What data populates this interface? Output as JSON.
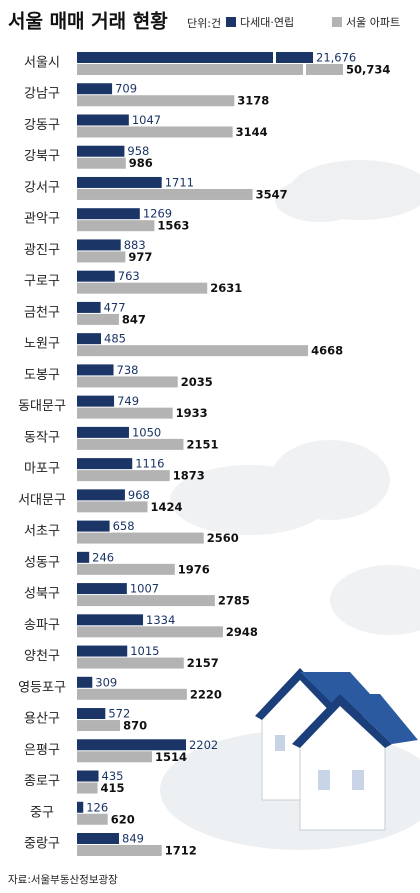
{
  "chart_data": {
    "type": "bar",
    "orientation": "horizontal",
    "title": "서울 매매 거래 현황",
    "unit": "단위:건",
    "source": "자료:서울부동산정보광장",
    "categories": [
      "서울시",
      "강남구",
      "강동구",
      "강북구",
      "강서구",
      "관악구",
      "광진구",
      "구로구",
      "금천구",
      "노원구",
      "도봉구",
      "동대문구",
      "동작구",
      "마포구",
      "서대문구",
      "서초구",
      "성동구",
      "성북구",
      "송파구",
      "양천구",
      "영등포구",
      "용산구",
      "은평구",
      "종로구",
      "중구",
      "중랑구"
    ],
    "series": [
      {
        "name": "다세대·연립",
        "color": "#1b3567",
        "values": [
          21676,
          709,
          1047,
          958,
          1711,
          1269,
          883,
          763,
          477,
          485,
          738,
          749,
          1050,
          1116,
          968,
          658,
          246,
          1007,
          1334,
          1015,
          309,
          572,
          2202,
          435,
          126,
          849
        ],
        "value_labels": [
          "21,676",
          "709",
          "1047",
          "958",
          "1711",
          "1269",
          "883",
          "763",
          "477",
          "485",
          "738",
          "749",
          "1050",
          "1116",
          "968",
          "658",
          "246",
          "1007",
          "1334",
          "1015",
          "309",
          "572",
          "2202",
          "435",
          "126",
          "849"
        ]
      },
      {
        "name": "서울 아파트",
        "color": "#b3b3b3",
        "values": [
          50734,
          3178,
          3144,
          986,
          3547,
          1563,
          977,
          2631,
          847,
          4668,
          2035,
          1933,
          2151,
          1873,
          1424,
          2560,
          1976,
          2785,
          2948,
          2157,
          2220,
          870,
          1514,
          415,
          620,
          1712
        ],
        "value_labels": [
          "50,734",
          "3178",
          "3144",
          "986",
          "3547",
          "1563",
          "977",
          "2631",
          "847",
          "4668",
          "2035",
          "1933",
          "2151",
          "1873",
          "1424",
          "2560",
          "1976",
          "2785",
          "2948",
          "2157",
          "2220",
          "870",
          "1514",
          "415",
          "620",
          "1712"
        ]
      }
    ]
  }
}
